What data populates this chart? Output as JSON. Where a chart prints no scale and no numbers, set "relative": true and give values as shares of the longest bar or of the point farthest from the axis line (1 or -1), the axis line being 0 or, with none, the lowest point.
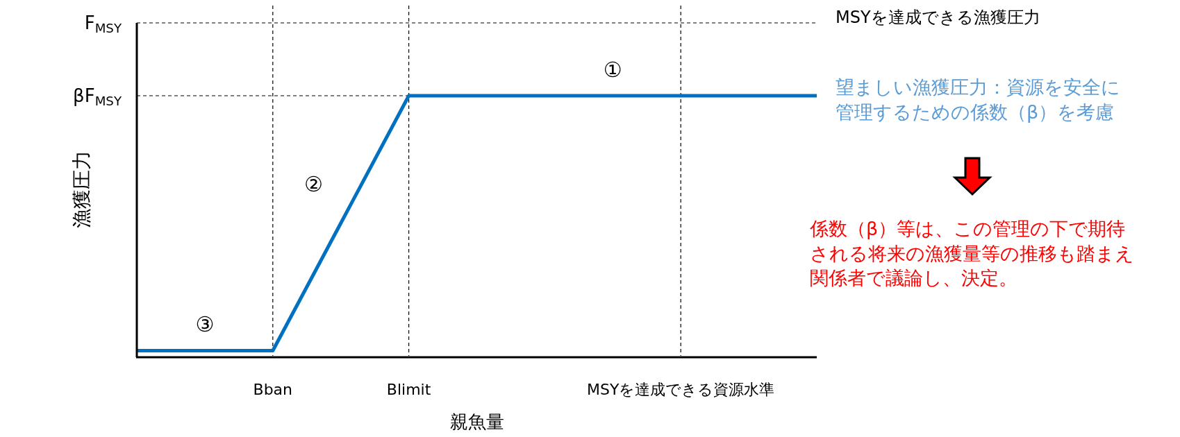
{
  "chart_data": {
    "type": "line",
    "relative": true,
    "xlabel": "親魚量",
    "ylabel": "漁獲圧力",
    "categories": [
      null,
      null,
      "Bban",
      null,
      "Blimit",
      null,
      null,
      null,
      "MSYを達成できる資源水準",
      null,
      null
    ],
    "series": [
      {
        "color": "#0070c0",
        "values": [
          0.02,
          0.02,
          0.02,
          0.51,
          1,
          1,
          1,
          1,
          1,
          1,
          1
        ]
      }
    ],
    "line_style": "solid",
    "marker": "none",
    "grid": false,
    "ref_lines": [
      {
        "axis": "y",
        "value": 1.28,
        "label": "F$_{MSY}$",
        "line_style": "dashed",
        "color": "#000000"
      },
      {
        "axis": "y",
        "value": 1,
        "label": "βF$_{MSY}$",
        "line_style": "dashed",
        "color": "#000000"
      },
      {
        "axis": "x",
        "value": "Bban",
        "line_style": "dashed",
        "color": "#000000"
      },
      {
        "axis": "x",
        "value": "Blimit",
        "line_style": "dashed",
        "color": "#000000"
      },
      {
        "axis": "x",
        "value": "MSYを達成できる資源水準",
        "line_style": "dashed",
        "color": "#000000"
      }
    ],
    "annotations": [
      "①",
      "②",
      "③",
      "MSYを達成できる漁獲圧力",
      "望ましい漁獲圧力：資源を安全に管理するための係数（β）を考慮",
      "係数（β）等は、この管理の下で期待される将来の漁獲量等の推移も踏まえ関係者で議論し、決定。"
    ]
  }
}
